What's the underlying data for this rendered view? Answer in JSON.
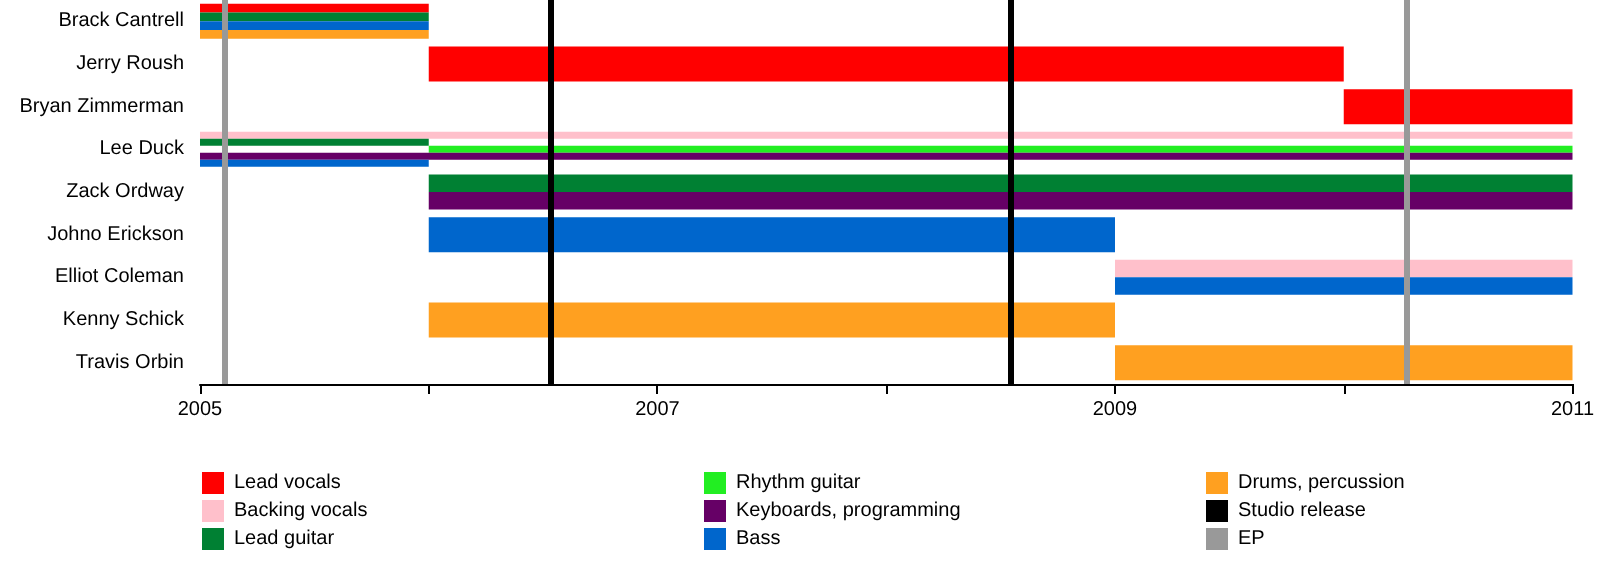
{
  "chart_data": {
    "type": "bar",
    "orientation": "horizontal",
    "categories": [
      "Brack Cantrell",
      "Jerry Roush",
      "Bryan Zimmerman",
      "Lee Duck",
      "Zack Ordway",
      "Johno Erickson",
      "Elliot Coleman",
      "Kenny Schick",
      "Travis Orbin"
    ],
    "series": [
      {
        "name": "Lead vocals",
        "color": "#ff0000",
        "base": [
          2005,
          2006,
          2010,
          null,
          null,
          null,
          null,
          null,
          null
        ],
        "values": [
          1,
          4,
          1,
          null,
          null,
          null,
          null,
          null,
          null
        ]
      },
      {
        "name": "Backing vocals",
        "color": "#ffc0cb",
        "base": [
          null,
          null,
          null,
          2005,
          null,
          null,
          2009,
          null,
          null
        ],
        "values": [
          null,
          null,
          null,
          6,
          null,
          null,
          2,
          null,
          null
        ]
      },
      {
        "name": "Lead guitar",
        "color": "#008033",
        "base": [
          2005,
          null,
          null,
          2005,
          2006,
          null,
          null,
          null,
          null
        ],
        "values": [
          1,
          null,
          null,
          1,
          5,
          null,
          null,
          null,
          null
        ]
      },
      {
        "name": "Rhythm guitar",
        "color": "#22ee22",
        "base": [
          null,
          null,
          null,
          2006,
          null,
          null,
          null,
          null,
          null
        ],
        "values": [
          null,
          null,
          null,
          5,
          null,
          null,
          null,
          null,
          null
        ]
      },
      {
        "name": "Keyboards, programming",
        "color": "#660066",
        "base": [
          null,
          null,
          null,
          2005,
          2006,
          null,
          null,
          null,
          null
        ],
        "values": [
          null,
          null,
          null,
          6,
          5,
          null,
          null,
          null,
          null
        ]
      },
      {
        "name": "Bass",
        "color": "#0066cc",
        "base": [
          2005,
          null,
          null,
          2005,
          null,
          2006,
          2009,
          null,
          null
        ],
        "values": [
          1,
          null,
          null,
          1,
          null,
          3,
          2,
          null,
          null
        ]
      },
      {
        "name": "Drums, percussion",
        "color": "#ffa020",
        "base": [
          2005,
          null,
          null,
          null,
          null,
          null,
          null,
          2006,
          2009
        ],
        "values": [
          1,
          null,
          null,
          null,
          null,
          null,
          null,
          3,
          2
        ]
      }
    ],
    "ref_lines": [
      {
        "axis": "x",
        "value": 2006.53,
        "label": "Studio release",
        "color": "#000000"
      },
      {
        "axis": "x",
        "value": 2008.54,
        "color": "#000000"
      },
      {
        "axis": "x",
        "value": 2005.11,
        "label": "EP",
        "color": "#999999"
      },
      {
        "axis": "x",
        "value": 2010.27,
        "color": "#999999"
      }
    ],
    "xlim": [
      2005,
      2011
    ],
    "xticks": [
      2005,
      {
        "value": 2006,
        "label": null
      },
      2007,
      {
        "value": 2008,
        "label": null
      },
      2009,
      {
        "value": 2010,
        "label": null
      },
      2011
    ],
    "grid": false,
    "legend": "bottom"
  }
}
